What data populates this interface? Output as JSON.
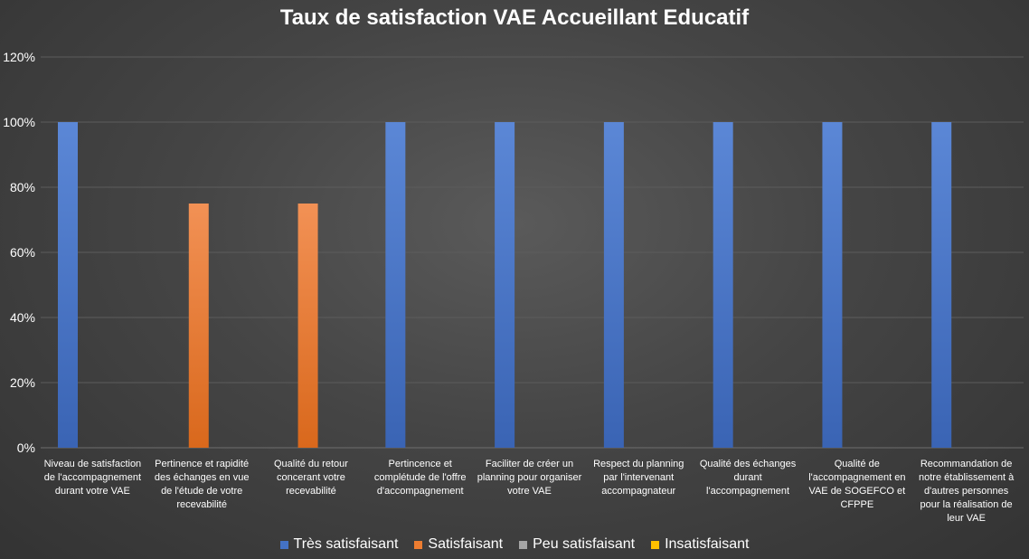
{
  "chart_data": {
    "type": "bar",
    "title": "Taux de satisfaction VAE Accueillant Educatif",
    "xlabel": "",
    "ylabel": "",
    "ylim": [
      0,
      1.2
    ],
    "yticks": [
      {
        "value": 0,
        "label": "0%"
      },
      {
        "value": 0.2,
        "label": "20%"
      },
      {
        "value": 0.4,
        "label": "40%"
      },
      {
        "value": 0.6,
        "label": "60%"
      },
      {
        "value": 0.8,
        "label": "80%"
      },
      {
        "value": 1.0,
        "label": "100%"
      },
      {
        "value": 1.2,
        "label": "120%"
      }
    ],
    "grid": true,
    "legend_position": "bottom",
    "categories": [
      "Niveau de satisfaction de l'accompagnement durant votre VAE",
      "Pertinence et rapidité des échanges en vue de l'étude de votre recevabilité",
      "Qualité du retour concerant votre recevabilité",
      "Pertincence et complétude de l'offre d'accompagnement",
      "Faciliter de créer un planning pour organiser votre VAE",
      "Respect du planning par l'intervenant accompagnateur",
      "Qualité des échanges durant l'accompagnement",
      "Qualité de l'accompagnement en VAE de SOGEFCO et CFPPE",
      "Recommandation de notre établissement à d'autres personnes pour la réalisation de leur VAE"
    ],
    "series": [
      {
        "name": "Très satisfaisant",
        "color": "#4472C4",
        "values": [
          1,
          0,
          0,
          1,
          1,
          1,
          1,
          1,
          1
        ]
      },
      {
        "name": "Satisfaisant",
        "color": "#ED7D31",
        "values": [
          0,
          0.75,
          0.75,
          0,
          0,
          0,
          0,
          0,
          0
        ]
      },
      {
        "name": "Peu satisfaisant",
        "color": "#A5A5A5",
        "values": [
          0,
          0,
          0,
          0,
          0,
          0,
          0,
          0,
          0
        ]
      },
      {
        "name": "Insatisfaisant",
        "color": "#FFC000",
        "values": [
          0,
          0,
          0,
          0,
          0,
          0,
          0,
          0,
          0
        ]
      }
    ]
  }
}
